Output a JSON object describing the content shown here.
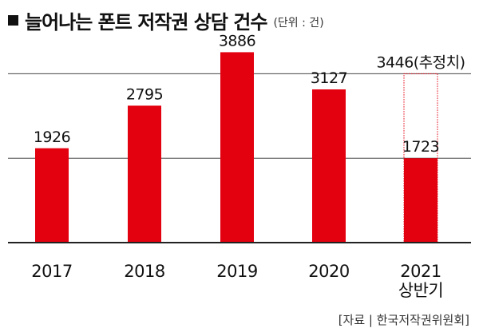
{
  "title": "늘어나는 폰트 저작권 상담 건수",
  "unit": "(단위 : 건)",
  "source": "[자료 | 한국저작권위원회]",
  "colors": {
    "bar": "#e3000f",
    "axis": "#222222",
    "grid": "#444444",
    "estimate_outline": "#e3000f"
  },
  "chart_data": {
    "type": "bar",
    "title": "늘어나는 폰트 저작권 상담 건수",
    "unit": "(단위 : 건)",
    "categories": [
      {
        "lines": [
          "2017"
        ]
      },
      {
        "lines": [
          "2018"
        ]
      },
      {
        "lines": [
          "2019"
        ]
      },
      {
        "lines": [
          "2020"
        ]
      },
      {
        "lines": [
          "2021",
          "상반기"
        ]
      }
    ],
    "values": [
      1926,
      2795,
      3886,
      3127,
      1723
    ],
    "value_labels": [
      "1926",
      "2795",
      "3886",
      "3127",
      "1723"
    ],
    "estimate": {
      "category_index": 4,
      "value": 3446,
      "label": "3446(추정치)",
      "style": "dotted-outline"
    },
    "ylim": [
      0,
      4300
    ],
    "grid": true,
    "grid_values": [
      1723,
      3446
    ],
    "xlabel": "",
    "ylabel": ""
  }
}
